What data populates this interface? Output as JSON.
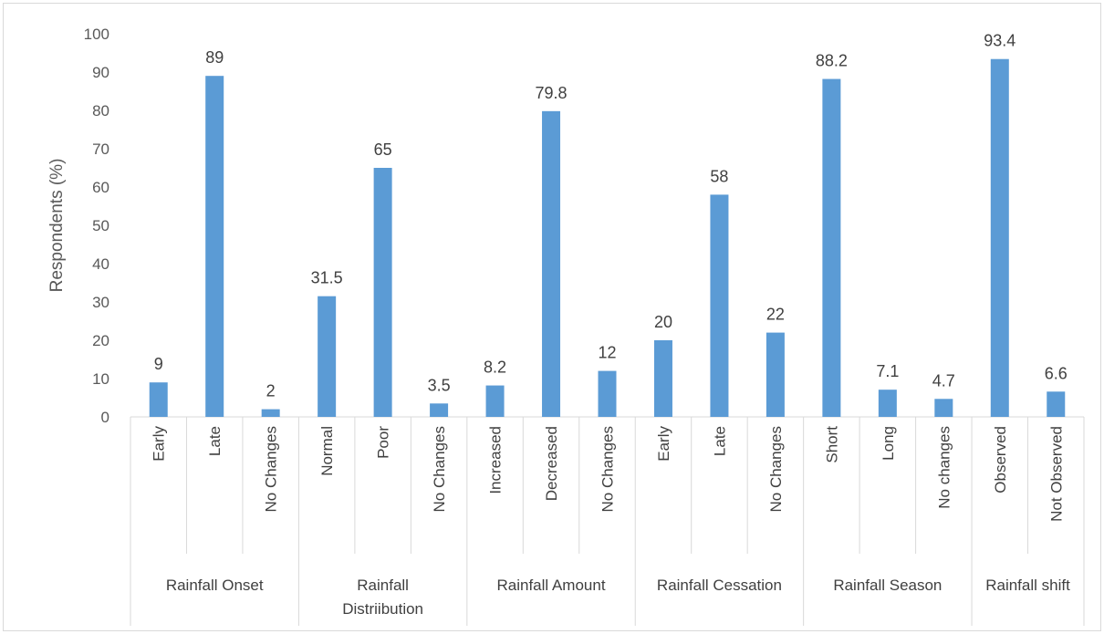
{
  "chart_data": {
    "type": "bar",
    "ylabel": "Respondents (%)",
    "ylim": [
      0,
      100
    ],
    "yticks": [
      0,
      10,
      20,
      30,
      40,
      50,
      60,
      70,
      80,
      90,
      100
    ],
    "grid": false,
    "bar_color": "#5b9bd5",
    "groups": [
      {
        "name": "Rainfall Onset",
        "name_lines": [
          "Rainfall Onset"
        ],
        "categories": [
          "Early",
          "Late",
          "No Changes"
        ],
        "values": [
          9,
          89,
          2
        ],
        "labels": [
          "9",
          "89",
          "2"
        ]
      },
      {
        "name": "Rainfall Distriibution",
        "name_lines": [
          "Rainfall",
          "Distriibution"
        ],
        "categories": [
          "Normal",
          "Poor",
          "No Changes"
        ],
        "values": [
          31.5,
          65,
          3.5
        ],
        "labels": [
          "31.5",
          "65",
          "3.5"
        ]
      },
      {
        "name": "Rainfall Amount",
        "name_lines": [
          "Rainfall Amount"
        ],
        "categories": [
          "Increased",
          "Decreased",
          "No Changes"
        ],
        "values": [
          8.2,
          79.8,
          12
        ],
        "labels": [
          "8.2",
          "79.8",
          "12"
        ]
      },
      {
        "name": "Rainfall Cessation",
        "name_lines": [
          "Rainfall Cessation"
        ],
        "categories": [
          "Early",
          "Late",
          "No Changes"
        ],
        "values": [
          20,
          58,
          22
        ],
        "labels": [
          "20",
          "58",
          "22"
        ]
      },
      {
        "name": "Rainfall Season",
        "name_lines": [
          "Rainfall Season"
        ],
        "categories": [
          "Short",
          "Long",
          "No changes"
        ],
        "values": [
          88.2,
          7.1,
          4.7
        ],
        "labels": [
          "88.2",
          "7.1",
          "4.7"
        ]
      },
      {
        "name": "Rainfall shift",
        "name_lines": [
          "Rainfall shift"
        ],
        "categories": [
          "Observed",
          "Not Observed"
        ],
        "values": [
          93.4,
          6.6
        ],
        "labels": [
          "93.4",
          "6.6"
        ]
      }
    ]
  }
}
